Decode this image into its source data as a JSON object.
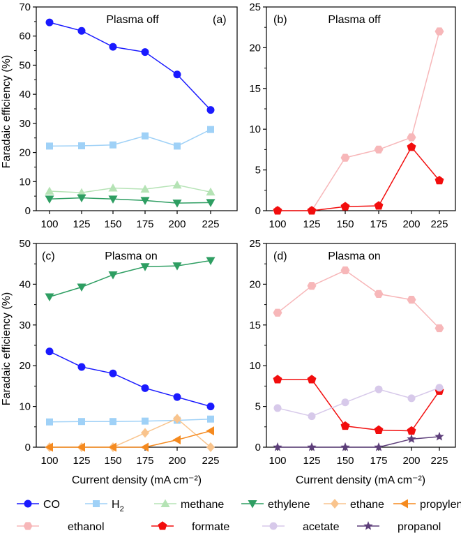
{
  "ylabel": "Faradaic efficiency (%)",
  "xlabel": "Current density (mA cm⁻²)",
  "chart_data": [
    {
      "type": "line",
      "panel": "(a)",
      "title": "Plasma off",
      "x": [
        100,
        125,
        150,
        175,
        200,
        225
      ],
      "xlim": [
        100,
        225
      ],
      "ylim": [
        0,
        70
      ],
      "yticks": [
        0,
        10,
        20,
        30,
        40,
        50,
        60,
        70
      ],
      "series": [
        {
          "name": "CO",
          "values": [
            64.7,
            61.8,
            56.3,
            54.5,
            46.8,
            34.6
          ]
        },
        {
          "name": "H2",
          "values": [
            22.2,
            22.3,
            22.6,
            25.7,
            22.2,
            27.9
          ]
        },
        {
          "name": "methane",
          "values": [
            6.7,
            6.2,
            7.8,
            7.4,
            8.8,
            6.4
          ]
        },
        {
          "name": "ethylene",
          "values": [
            4.0,
            4.4,
            4.0,
            3.5,
            2.6,
            2.8
          ]
        }
      ]
    },
    {
      "type": "line",
      "panel": "(b)",
      "title": "Plasma off",
      "x": [
        100,
        125,
        150,
        175,
        200,
        225
      ],
      "xlim": [
        100,
        225
      ],
      "ylim": [
        0,
        25
      ],
      "yticks": [
        0,
        5,
        10,
        15,
        20,
        25
      ],
      "series": [
        {
          "name": "ethanol",
          "values": [
            0,
            0,
            6.5,
            7.5,
            9.0,
            22.0
          ]
        },
        {
          "name": "formate",
          "values": [
            0,
            0,
            0.5,
            0.6,
            7.8,
            3.7
          ]
        }
      ]
    },
    {
      "type": "line",
      "panel": "(c)",
      "title": "Plasma on",
      "x": [
        100,
        125,
        150,
        175,
        200,
        225
      ],
      "xlim": [
        100,
        225
      ],
      "ylim": [
        0,
        50
      ],
      "yticks": [
        0,
        10,
        20,
        30,
        40,
        50
      ],
      "series": [
        {
          "name": "ethylene",
          "values": [
            36.9,
            39.3,
            42.3,
            44.3,
            44.5,
            45.8
          ]
        },
        {
          "name": "CO",
          "values": [
            23.5,
            19.7,
            18.1,
            14.5,
            12.3,
            10.0
          ]
        },
        {
          "name": "H2",
          "values": [
            6.2,
            6.3,
            6.3,
            6.4,
            6.6,
            6.9
          ]
        },
        {
          "name": "ethane",
          "values": [
            0,
            0,
            0,
            3.5,
            7.0,
            0
          ]
        },
        {
          "name": "propylene",
          "values": [
            0,
            0,
            0,
            0,
            1.8,
            4.0
          ]
        }
      ]
    },
    {
      "type": "line",
      "panel": "(d)",
      "title": "Plasma on",
      "x": [
        100,
        125,
        150,
        175,
        200,
        225
      ],
      "xlim": [
        100,
        225
      ],
      "ylim": [
        0,
        25
      ],
      "yticks": [
        0,
        5,
        10,
        15,
        20,
        25
      ],
      "series": [
        {
          "name": "ethanol",
          "values": [
            16.5,
            19.8,
            21.7,
            18.8,
            18.1,
            14.6
          ]
        },
        {
          "name": "formate",
          "values": [
            8.3,
            8.3,
            2.6,
            2.1,
            2.0,
            6.9
          ]
        },
        {
          "name": "acetate",
          "values": [
            4.8,
            3.8,
            5.5,
            7.1,
            6.0,
            7.3
          ]
        },
        {
          "name": "propanol",
          "values": [
            0,
            0,
            0,
            0,
            1.0,
            1.3
          ]
        }
      ]
    }
  ],
  "legend": [
    {
      "key": "CO",
      "label": "CO",
      "color": "#1a1aff",
      "marker": "circle"
    },
    {
      "key": "H2",
      "label": "H",
      "sub": "2",
      "color": "#9fd1f7",
      "marker": "square"
    },
    {
      "key": "methane",
      "label": "methane",
      "color": "#b5e3b5",
      "marker": "triangle-up"
    },
    {
      "key": "ethylene",
      "label": "ethylene",
      "color": "#2e9e62",
      "marker": "triangle-down"
    },
    {
      "key": "ethane",
      "label": "ethane",
      "color": "#f9c48d",
      "marker": "diamond"
    },
    {
      "key": "propylene",
      "label": "propylene",
      "color": "#f58a1f",
      "marker": "triangle-left"
    },
    {
      "key": "ethanol",
      "label": "ethanol",
      "color": "#f7b7b9",
      "marker": "hexagon"
    },
    {
      "key": "formate",
      "label": "formate",
      "color": "#f20d0d",
      "marker": "pentagon"
    },
    {
      "key": "acetate",
      "label": "acetate",
      "color": "#d7c9ea",
      "marker": "circle"
    },
    {
      "key": "propanol",
      "label": "propanol",
      "color": "#5d3e7a",
      "marker": "star"
    }
  ]
}
